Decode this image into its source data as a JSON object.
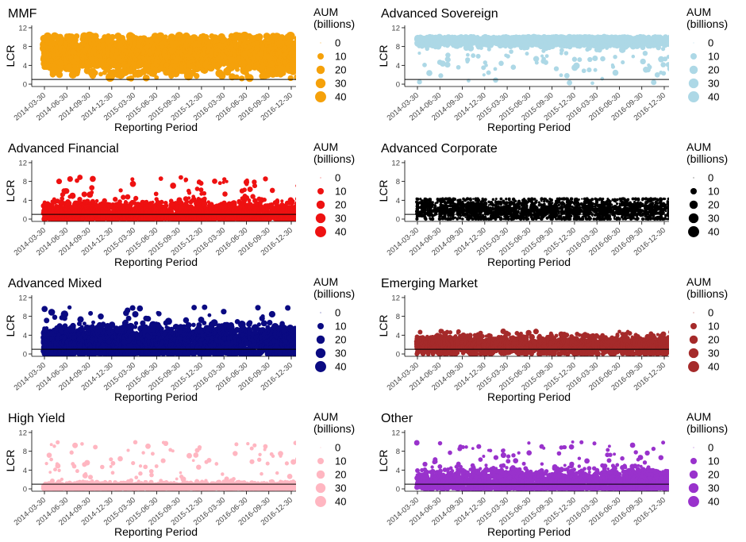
{
  "figure": {
    "xlabel": "Reporting Period",
    "ylabel": "LCR",
    "legend_title": [
      "AUM",
      "(billions)"
    ],
    "legend_values": [
      "0",
      "10",
      "20",
      "30",
      "40"
    ],
    "reference_line_y": 1
  },
  "chart_data": [
    {
      "type": "scatter",
      "title": "MMF",
      "color": "#F5A10A",
      "xlabel": "Reporting Period",
      "ylabel": "LCR",
      "ylim": [
        -0.5,
        12.5
      ],
      "yticks": [
        0,
        4,
        8,
        12
      ],
      "x_categories": [
        "2014-03-30",
        "2014-06-30",
        "2014-09-30",
        "2014-12-30",
        "2015-03-30",
        "2015-06-30",
        "2015-09-30",
        "2015-12-30",
        "2016-03-30",
        "2016-06-30",
        "2016-09-30",
        "2016-12-30"
      ],
      "hline": 1,
      "legend": {
        "title": "AUM (billions)",
        "sizes": [
          0,
          10,
          20,
          30,
          40
        ],
        "position": "right"
      },
      "distribution": {
        "y_center": 6.5,
        "y_spread": 1.7,
        "y_min": 1.2,
        "y_max": 10.2,
        "size_mean": 18,
        "outlier_max": 10
      }
    },
    {
      "type": "scatter",
      "title": "Advanced Sovereign",
      "color": "#ADD8E6",
      "xlabel": "Reporting Period",
      "ylabel": "LCR",
      "ylim": [
        -0.5,
        12.5
      ],
      "yticks": [
        0,
        4,
        8,
        12
      ],
      "x_categories": [
        "2014-03-30",
        "2014-06-30",
        "2014-09-30",
        "2014-12-30",
        "2015-03-30",
        "2015-06-30",
        "2015-09-30",
        "2015-12-30",
        "2016-03-30",
        "2016-06-30",
        "2016-09-30",
        "2016-12-30"
      ],
      "hline": 1,
      "legend": {
        "title": "AUM (billions)",
        "sizes": [
          0,
          10,
          20,
          30,
          40
        ],
        "position": "right"
      },
      "distribution": {
        "y_center": 9.2,
        "y_spread": 0.5,
        "y_min": 0.2,
        "y_max": 10.0,
        "size_mean": 8,
        "outlier_max": 10
      }
    },
    {
      "type": "scatter",
      "title": "Advanced Financial",
      "color": "#EE1111",
      "xlabel": "Reporting Period",
      "ylabel": "LCR",
      "ylim": [
        -0.5,
        12.5
      ],
      "yticks": [
        0,
        4,
        8,
        12
      ],
      "x_categories": [
        "2014-03-30",
        "2014-06-30",
        "2014-09-30",
        "2014-12-30",
        "2015-03-30",
        "2015-06-30",
        "2015-09-30",
        "2015-12-30",
        "2016-03-30",
        "2016-06-30",
        "2016-09-30",
        "2016-12-30"
      ],
      "hline": 1,
      "legend": {
        "title": "AUM (billions)",
        "sizes": [
          0,
          10,
          20,
          30,
          40
        ],
        "position": "right"
      },
      "distribution": {
        "y_center": 1.2,
        "y_spread": 1.2,
        "y_min": 0.0,
        "y_max": 9.0,
        "size_mean": 7,
        "outlier_max": 9
      }
    },
    {
      "type": "scatter",
      "title": "Advanced Corporate",
      "color": "#000000",
      "xlabel": "Reporting Period",
      "ylabel": "LCR",
      "ylim": [
        -0.5,
        12.5
      ],
      "yticks": [
        0,
        4,
        8,
        12
      ],
      "x_categories": [
        "2014-03-30",
        "2014-06-30",
        "2014-09-30",
        "2014-12-30",
        "2015-03-30",
        "2015-06-30",
        "2015-09-30",
        "2015-12-30",
        "2016-03-30",
        "2016-06-30",
        "2016-09-30",
        "2016-12-30"
      ],
      "hline": 1,
      "legend": {
        "title": "AUM (billions)",
        "sizes": [
          0,
          10,
          20,
          30,
          40
        ],
        "position": "right"
      },
      "distribution": {
        "y_center": 2.0,
        "y_spread": 1.3,
        "y_min": 0.0,
        "y_max": 4.3,
        "size_mean": 1,
        "outlier_max": 4.3
      }
    },
    {
      "type": "scatter",
      "title": "Advanced Mixed",
      "color": "#0A0A82",
      "xlabel": "Reporting Period",
      "ylabel": "LCR",
      "ylim": [
        -0.5,
        12.5
      ],
      "yticks": [
        0,
        4,
        8,
        12
      ],
      "x_categories": [
        "2014-03-30",
        "2014-06-30",
        "2014-09-30",
        "2014-12-30",
        "2015-03-30",
        "2015-06-30",
        "2015-09-30",
        "2015-12-30",
        "2016-03-30",
        "2016-06-30",
        "2016-09-30",
        "2016-12-30"
      ],
      "hline": 1,
      "legend": {
        "title": "AUM (billions)",
        "sizes": [
          0,
          10,
          20,
          30,
          40
        ],
        "position": "right"
      },
      "distribution": {
        "y_center": 2.5,
        "y_spread": 1.6,
        "y_min": 0.0,
        "y_max": 10.0,
        "size_mean": 12,
        "outlier_max": 10
      }
    },
    {
      "type": "scatter",
      "title": "Emerging Market",
      "color": "#A52A2A",
      "xlabel": "Reporting Period",
      "ylabel": "LCR",
      "ylim": [
        -0.5,
        12.5
      ],
      "yticks": [
        0,
        4,
        8,
        12
      ],
      "x_categories": [
        "2014-03-30",
        "2014-06-30",
        "2014-09-30",
        "2014-12-30",
        "2015-03-30",
        "2015-06-30",
        "2015-09-30",
        "2015-12-30",
        "2016-03-30",
        "2016-06-30",
        "2016-09-30",
        "2016-12-30"
      ],
      "hline": 1,
      "legend": {
        "title": "AUM (billions)",
        "sizes": [
          0,
          10,
          20,
          30,
          40
        ],
        "position": "right"
      },
      "distribution": {
        "y_center": 1.8,
        "y_spread": 1.0,
        "y_min": 0.0,
        "y_max": 5.0,
        "size_mean": 6,
        "outlier_max": 5
      }
    },
    {
      "type": "scatter",
      "title": "High Yield",
      "color": "#FFB6C1",
      "xlabel": "Reporting Period",
      "ylabel": "LCR",
      "ylim": [
        -0.5,
        12.5
      ],
      "yticks": [
        0,
        4,
        8,
        12
      ],
      "x_categories": [
        "2014-03-30",
        "2014-06-30",
        "2014-09-30",
        "2014-12-30",
        "2015-03-30",
        "2015-06-30",
        "2015-09-30",
        "2015-12-30",
        "2016-03-30",
        "2016-06-30",
        "2016-09-30",
        "2016-12-30"
      ],
      "hline": 1,
      "legend": {
        "title": "AUM (billions)",
        "sizes": [
          0,
          10,
          20,
          30,
          40
        ],
        "position": "right"
      },
      "distribution": {
        "y_center": 0.5,
        "y_spread": 0.4,
        "y_min": 0.0,
        "y_max": 10.0,
        "size_mean": 5,
        "outlier_max": 10
      }
    },
    {
      "type": "scatter",
      "title": "Other",
      "color": "#9932CC",
      "xlabel": "Reporting Period",
      "ylabel": "LCR",
      "ylim": [
        -0.5,
        12.5
      ],
      "yticks": [
        0,
        4,
        8,
        12
      ],
      "x_categories": [
        "2014-03-30",
        "2014-06-30",
        "2014-09-30",
        "2014-12-30",
        "2015-03-30",
        "2015-06-30",
        "2015-09-30",
        "2015-12-30",
        "2016-03-30",
        "2016-06-30",
        "2016-09-30",
        "2016-12-30"
      ],
      "hline": 1,
      "legend": {
        "title": "AUM (billions)",
        "sizes": [
          0,
          10,
          20,
          30,
          40
        ],
        "position": "right"
      },
      "distribution": {
        "y_center": 1.5,
        "y_spread": 1.3,
        "y_min": 0.0,
        "y_max": 10.0,
        "size_mean": 5,
        "outlier_max": 10
      }
    }
  ]
}
